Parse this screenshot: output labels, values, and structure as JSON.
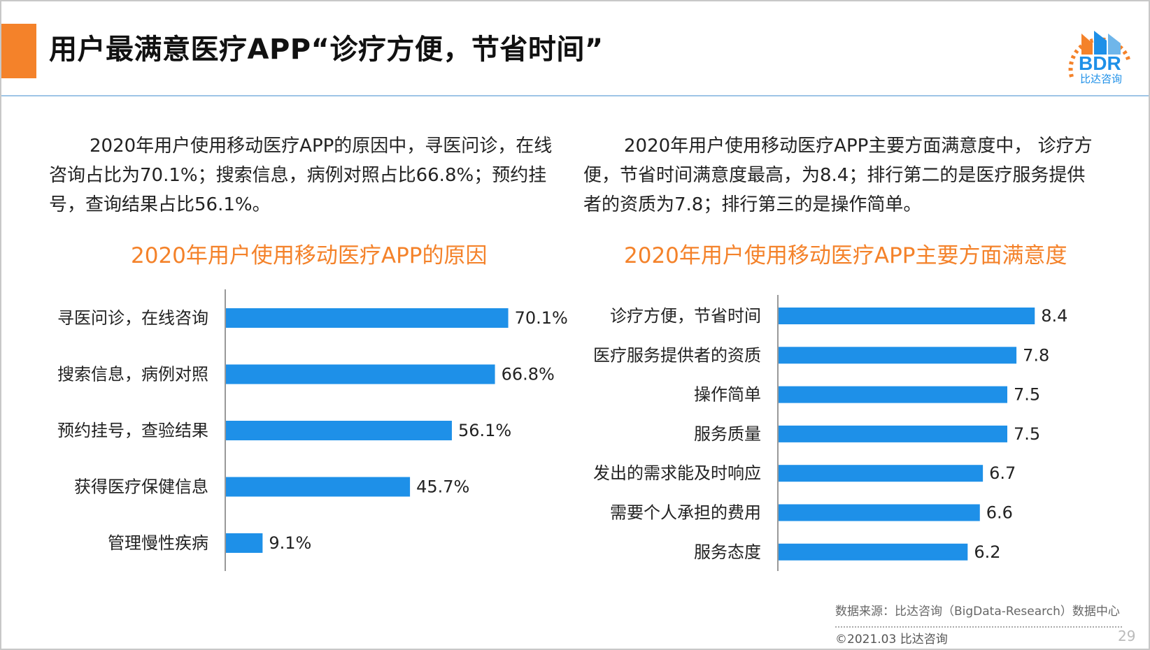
{
  "slide": {
    "title": "用户最满意医疗APP“诊疗方便，节省时间”",
    "logo": {
      "text": "BDR",
      "caption": "比达咨询",
      "colors": {
        "orange": "#f4822a",
        "blue": "#1e90e8"
      }
    },
    "paragraph_left": "2020年用户使用移动医疗APP的原因中，寻医问诊，在线咨询占比为70.1%；搜索信息，病例对照占比66.8%；预约挂号，查询结果占比56.1%。",
    "paragraph_right": "2020年用户使用移动医疗APP主要方面满意度中， 诊疗方便，节省时间满意度最高，为8.4；排行第二的是医疗服务提供者的资质为7.8；排行第三的是操作简单。",
    "source": "数据来源：比达咨询（BigData-Research）数据中心",
    "copyright": "©2021.03 比达咨询",
    "page_number": "29",
    "colors": {
      "accent": "#f4822a",
      "bar": "#1e90e8",
      "header_line": "#9ec5e6"
    }
  },
  "chart_data": [
    {
      "type": "bar",
      "orientation": "horizontal",
      "title": "2020年用户使用移动医疗APP的原因",
      "categories": [
        "寻医问诊，在线咨询",
        "搜索信息，病例对照",
        "预约挂号，查验结果",
        "获得医疗保健信息",
        "管理慢性疾病"
      ],
      "values": [
        70.1,
        66.8,
        56.1,
        45.7,
        9.1
      ],
      "value_labels": [
        "70.1%",
        "66.8%",
        "56.1%",
        "45.7%",
        "9.1%"
      ],
      "unit": "%",
      "xlim": [
        0,
        100
      ],
      "grid": false,
      "legend": "none",
      "color": "#1e90e8"
    },
    {
      "type": "bar",
      "orientation": "horizontal",
      "title": "2020年用户使用移动医疗APP主要方面满意度",
      "categories": [
        "诊疗方便，节省时间",
        "医疗服务提供者的资质",
        "操作简单",
        "服务质量",
        "发出的需求能及时响应",
        "需要个人承担的费用",
        "服务态度"
      ],
      "values": [
        8.4,
        7.8,
        7.5,
        7.5,
        6.7,
        6.6,
        6.2
      ],
      "value_labels": [
        "8.4",
        "7.8",
        "7.5",
        "7.5",
        "6.7",
        "6.6",
        "6.2"
      ],
      "xlim": [
        0,
        10
      ],
      "grid": false,
      "legend": "none",
      "color": "#1e90e8"
    }
  ]
}
